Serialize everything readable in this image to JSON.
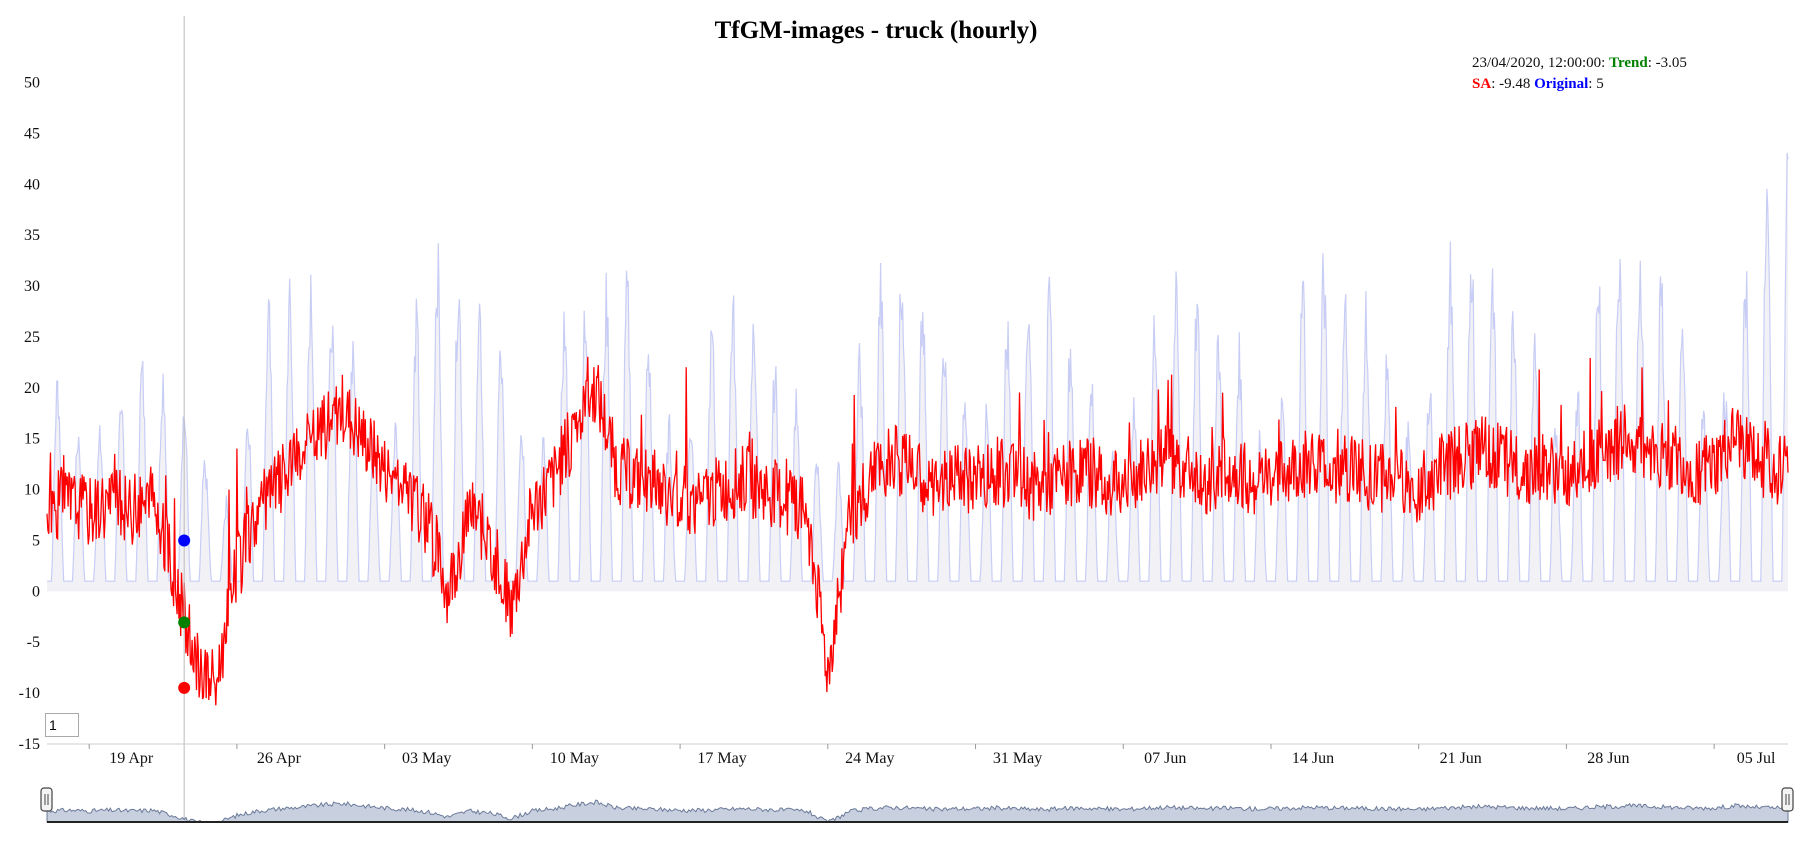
{
  "chart_data": {
    "type": "line",
    "title": "TfGM-images - truck (hourly)",
    "xlabel": "",
    "ylabel": "",
    "ylim": [
      -15,
      53
    ],
    "yticks": [
      50,
      45,
      40,
      35,
      30,
      25,
      20,
      15,
      10,
      5,
      0,
      -5,
      -10,
      -15
    ],
    "xlim": [
      "2020-04-17T00:00",
      "2020-07-08T12:00"
    ],
    "xticks": [
      {
        "date": "2020-04-19",
        "label": "19 Apr"
      },
      {
        "date": "2020-04-26",
        "label": "26 Apr"
      },
      {
        "date": "2020-05-03",
        "label": "03 May"
      },
      {
        "date": "2020-05-10",
        "label": "10 May"
      },
      {
        "date": "2020-05-17",
        "label": "17 May"
      },
      {
        "date": "2020-05-24",
        "label": "24 May"
      },
      {
        "date": "2020-05-31",
        "label": "31 May"
      },
      {
        "date": "2020-06-07",
        "label": "07 Jun"
      },
      {
        "date": "2020-06-14",
        "label": "14 Jun"
      },
      {
        "date": "2020-06-21",
        "label": "21 Jun"
      },
      {
        "date": "2020-06-28",
        "label": "28 Jun"
      },
      {
        "date": "2020-07-05",
        "label": "05 Jul"
      }
    ],
    "grid": false,
    "legend": "none",
    "series": [
      {
        "name": "Original",
        "color": "#c8cdf5",
        "style": "filled-line",
        "x": [
          "2020-04-17",
          "2020-04-18",
          "2020-04-19",
          "2020-04-20",
          "2020-04-21",
          "2020-04-22",
          "2020-04-23",
          "2020-04-24",
          "2020-04-25",
          "2020-04-26",
          "2020-04-27",
          "2020-04-28",
          "2020-04-29",
          "2020-04-30",
          "2020-05-01",
          "2020-05-02",
          "2020-05-03",
          "2020-05-04",
          "2020-05-05",
          "2020-05-06",
          "2020-05-07",
          "2020-05-08",
          "2020-05-09",
          "2020-05-10",
          "2020-05-11",
          "2020-05-12",
          "2020-05-13",
          "2020-05-14",
          "2020-05-15",
          "2020-05-16",
          "2020-05-17",
          "2020-05-18",
          "2020-05-19",
          "2020-05-20",
          "2020-05-21",
          "2020-05-22",
          "2020-05-23",
          "2020-05-24",
          "2020-05-25",
          "2020-05-26",
          "2020-05-27",
          "2020-05-28",
          "2020-05-29",
          "2020-05-30",
          "2020-05-31",
          "2020-06-01",
          "2020-06-02",
          "2020-06-03",
          "2020-06-04",
          "2020-06-05",
          "2020-06-06",
          "2020-06-07",
          "2020-06-08",
          "2020-06-09",
          "2020-06-10",
          "2020-06-11",
          "2020-06-12",
          "2020-06-13",
          "2020-06-14",
          "2020-06-15",
          "2020-06-16",
          "2020-06-17",
          "2020-06-18",
          "2020-06-19",
          "2020-06-20",
          "2020-06-21",
          "2020-06-22",
          "2020-06-23",
          "2020-06-24",
          "2020-06-25",
          "2020-06-26",
          "2020-06-27",
          "2020-06-28",
          "2020-06-29",
          "2020-06-30",
          "2020-07-01",
          "2020-07-02",
          "2020-07-03",
          "2020-07-04",
          "2020-07-05",
          "2020-07-06",
          "2020-07-07",
          "2020-07-08"
        ],
        "values": [
          23,
          22,
          12,
          21,
          22,
          26,
          21,
          18,
          9,
          10,
          28,
          31,
          31,
          33,
          29,
          25,
          11,
          24,
          34,
          37,
          30,
          27,
          24,
          11,
          22,
          36,
          26,
          37,
          28,
          24,
          11,
          25,
          30,
          31,
          26,
          21,
          19,
          8,
          18,
          31,
          35,
          35,
          25,
          29,
          10,
          27,
          30,
          33,
          29,
          24,
          19,
          11,
          29,
          30,
          33,
          28,
          28,
          23,
          11,
          30,
          36,
          33,
          31,
          28,
          21,
          13,
          32,
          38,
          36,
          33,
          28,
          25,
          12,
          30,
          38,
          37,
          35,
          31,
          25,
          12,
          30,
          38,
          47
        ]
      },
      {
        "name": "SA",
        "color": "#ff0000",
        "style": "line",
        "x": [
          "2020-04-17",
          "2020-04-18",
          "2020-04-19",
          "2020-04-20",
          "2020-04-21",
          "2020-04-22",
          "2020-04-23",
          "2020-04-24",
          "2020-04-25",
          "2020-04-26",
          "2020-04-27",
          "2020-04-28",
          "2020-04-29",
          "2020-04-30",
          "2020-05-01",
          "2020-05-02",
          "2020-05-03",
          "2020-05-04",
          "2020-05-05",
          "2020-05-06",
          "2020-05-07",
          "2020-05-08",
          "2020-05-09",
          "2020-05-10",
          "2020-05-11",
          "2020-05-12",
          "2020-05-13",
          "2020-05-14",
          "2020-05-15",
          "2020-05-16",
          "2020-05-17",
          "2020-05-18",
          "2020-05-19",
          "2020-05-20",
          "2020-05-21",
          "2020-05-22",
          "2020-05-23",
          "2020-05-24",
          "2020-05-25",
          "2020-05-26",
          "2020-05-27",
          "2020-05-28",
          "2020-05-29",
          "2020-05-30",
          "2020-05-31",
          "2020-06-01",
          "2020-06-02",
          "2020-06-03",
          "2020-06-04",
          "2020-06-05",
          "2020-06-06",
          "2020-06-07",
          "2020-06-08",
          "2020-06-09",
          "2020-06-10",
          "2020-06-11",
          "2020-06-12",
          "2020-06-13",
          "2020-06-14",
          "2020-06-15",
          "2020-06-16",
          "2020-06-17",
          "2020-06-18",
          "2020-06-19",
          "2020-06-20",
          "2020-06-21",
          "2020-06-22",
          "2020-06-23",
          "2020-06-24",
          "2020-06-25",
          "2020-06-26",
          "2020-06-27",
          "2020-06-28",
          "2020-06-29",
          "2020-06-30",
          "2020-07-01",
          "2020-07-02",
          "2020-07-03",
          "2020-07-04",
          "2020-07-05",
          "2020-07-06",
          "2020-07-07",
          "2020-07-08"
        ],
        "values": [
          8,
          9,
          8,
          9,
          8,
          9,
          2,
          -7,
          -9,
          2,
          8,
          11,
          13,
          16,
          18,
          15,
          12,
          10,
          7,
          0,
          8,
          5,
          -2,
          8,
          11,
          16,
          20,
          12,
          11,
          10,
          9,
          9,
          10,
          11,
          10,
          9,
          8,
          -8,
          7,
          11,
          13,
          12,
          10,
          11,
          11,
          12,
          11,
          10,
          11,
          12,
          11,
          10,
          12,
          13,
          12,
          11,
          12,
          11,
          11,
          12,
          13,
          12,
          12,
          11,
          11,
          10,
          12,
          13,
          14,
          13,
          12,
          12,
          11,
          13,
          14,
          15,
          14,
          13,
          12,
          12,
          15,
          13,
          12
        ]
      },
      {
        "name": "Trend",
        "color": "#008000",
        "style": "none",
        "x": [],
        "values": []
      }
    ],
    "hover": {
      "timestamp": "23/04/2020, 12:00:00",
      "date": "2020-04-23T12:00",
      "trend_label": "Trend",
      "trend_value": "-3.05",
      "trend_value_num": -3.05,
      "sa_label": "SA",
      "sa_value": "-9.48",
      "sa_value_num": -9.48,
      "original_label": "Original",
      "original_value": "5",
      "original_value_num": 5
    },
    "range_selector_value": "1",
    "colors": {
      "original": "#c8cdf5",
      "original_fill": "#f2f1f6",
      "sa": "#ff0000",
      "trend": "#008000",
      "original_label": "#0000ff",
      "navigator_fill": "#c8d0e0",
      "navigator_line": "#6b7a99"
    }
  }
}
